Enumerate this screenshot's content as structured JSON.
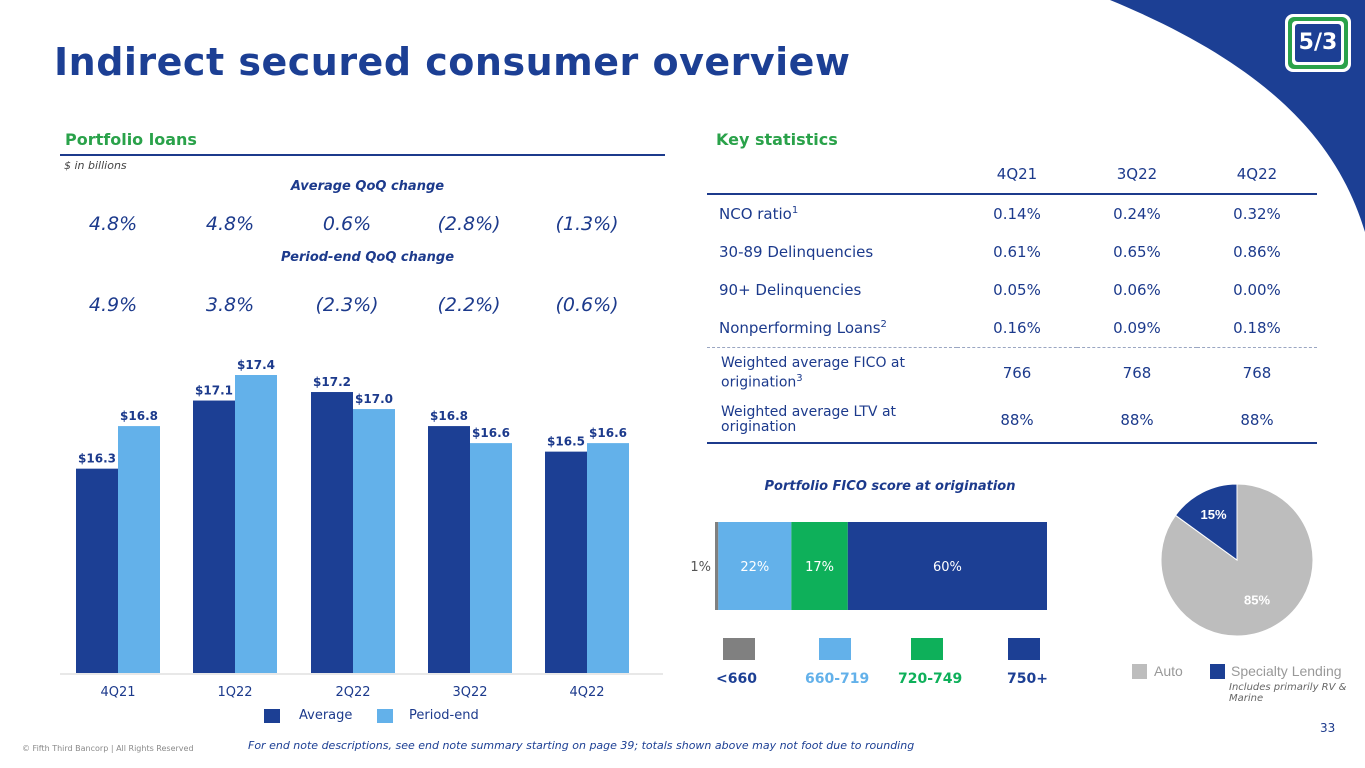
{
  "title": "Indirect secured consumer overview",
  "portfolio_loans": {
    "title": "Portfolio loans",
    "unit_note": "$ in billions",
    "avg_qoq_title": "Average QoQ change",
    "avg_qoq": [
      "4.8%",
      "4.8%",
      "0.6%",
      "(2.8%)",
      "(1.3%)"
    ],
    "pe_qoq_title": "Period-end QoQ change",
    "pe_qoq": [
      "4.9%",
      "3.8%",
      "(2.3%)",
      "(2.2%)",
      "(0.6%)"
    ]
  },
  "key_stats": {
    "title": "Key statistics",
    "columns": [
      "4Q21",
      "3Q22",
      "4Q22"
    ],
    "rows": [
      {
        "label": "NCO ratio",
        "sup": "1",
        "values": [
          "0.14%",
          "0.24%",
          "0.32%"
        ]
      },
      {
        "label": "30-89 Delinquencies",
        "sup": "",
        "values": [
          "0.61%",
          "0.65%",
          "0.86%"
        ]
      },
      {
        "label": "90+ Delinquencies",
        "sup": "",
        "values": [
          "0.05%",
          "0.06%",
          "0.00%"
        ]
      },
      {
        "label": "Nonperforming Loans",
        "sup": "2",
        "values": [
          "0.16%",
          "0.09%",
          "0.18%"
        ]
      },
      {
        "label": "Weighted average FICO at origination",
        "sup": "3",
        "values": [
          "766",
          "768",
          "768"
        ]
      },
      {
        "label": "Weighted average LTV at origination",
        "sup": "",
        "values": [
          "88%",
          "88%",
          "88%"
        ]
      }
    ]
  },
  "fico": {
    "title": "Portfolio FICO score at origination",
    "legend": [
      "<660",
      "660-719",
      "720-749",
      "750+"
    ]
  },
  "pie_legend": {
    "auto": "Auto",
    "specialty": "Specialty Lending",
    "note": "Includes primarily RV & Marine"
  },
  "bar_legend": {
    "average": "Average",
    "period_end": "Period-end"
  },
  "colors": {
    "navy": "#1c3f94",
    "light_blue": "#63b1ea",
    "green": "#0eb05a",
    "gray": "#808080",
    "pie_gray": "#bdbdbd"
  },
  "page_number": "33",
  "footnote": "For end note descriptions, see end note summary starting on page 39; totals shown above may not foot due to rounding",
  "copyright": "© Fifth Third Bancorp | All Rights Reserved",
  "chart_data": [
    {
      "type": "bar",
      "title": "Portfolio loans",
      "ylabel": "$ in billions",
      "categories": [
        "4Q21",
        "1Q22",
        "2Q22",
        "3Q22",
        "4Q22"
      ],
      "series": [
        {
          "name": "Average",
          "values": [
            16.3,
            17.1,
            17.2,
            16.8,
            16.5
          ],
          "labels": [
            "$16.3",
            "$17.1",
            "$17.2",
            "$16.8",
            "$16.5"
          ]
        },
        {
          "name": "Period-end",
          "values": [
            16.8,
            17.4,
            17.0,
            16.6,
            16.6
          ],
          "labels": [
            "$16.8",
            "$17.4",
            "$17.0",
            "$16.6",
            "$16.6"
          ]
        }
      ],
      "ylim": [
        0,
        17.4
      ]
    },
    {
      "type": "bar",
      "title": "Portfolio FICO score at origination",
      "categories": [
        "<660",
        "660-719",
        "720-749",
        "750+"
      ],
      "values": [
        1,
        22,
        17,
        60
      ],
      "labels": [
        "1%",
        "22%",
        "17%",
        "60%"
      ]
    },
    {
      "type": "pie",
      "categories": [
        "Auto",
        "Specialty Lending"
      ],
      "values": [
        85,
        15
      ],
      "labels": [
        "85%",
        "15%"
      ]
    }
  ]
}
